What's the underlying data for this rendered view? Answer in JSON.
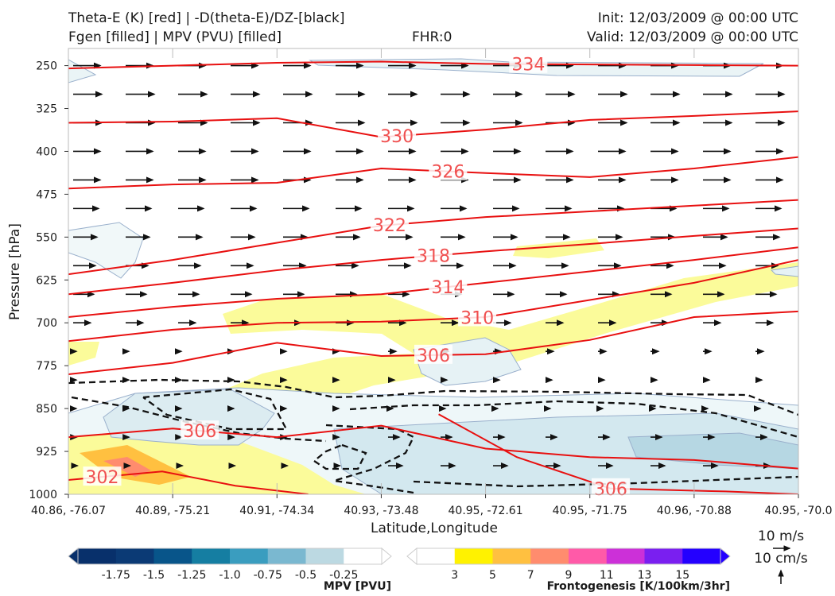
{
  "header": {
    "line1_left": "Theta-E (K) [red] | -D(theta-E)/DZ-[black]",
    "line2_left": "Fgen [filled] | MPV (PVU) [filled]",
    "fhr": "FHR:0",
    "init": "Init: 12/03/2009 @ 00:00 UTC",
    "valid": "Valid: 12/03/2009 @ 00:00 UTC"
  },
  "chart_data": {
    "type": "cross-section",
    "xlabel": "Latitude,Longitude",
    "ylabel": "Pressure [hPa]",
    "ylim": [
      1000,
      220
    ],
    "y_ticks": [
      250,
      325,
      400,
      475,
      550,
      625,
      700,
      775,
      850,
      925,
      1000
    ],
    "x_ticks": [
      "40.86, -76.07",
      "40.89, -75.21",
      "40.91, -74.34",
      "40.93, -73.48",
      "40.95, -72.61",
      "40.95, -71.75",
      "40.96, -70.88",
      "40.95, -70.0"
    ],
    "theta_e_series": [
      {
        "label": "334",
        "points": [
          [
            0,
            255
          ],
          [
            1,
            250
          ],
          [
            2,
            245
          ],
          [
            3,
            243
          ],
          [
            4,
            247
          ],
          [
            5,
            248
          ],
          [
            6,
            249
          ],
          [
            7,
            250
          ]
        ]
      },
      {
        "label": "330",
        "points": [
          [
            0,
            350
          ],
          [
            1,
            348
          ],
          [
            2,
            342
          ],
          [
            3,
            375
          ],
          [
            4,
            362
          ],
          [
            5,
            345
          ],
          [
            6,
            338
          ],
          [
            7,
            330
          ]
        ]
      },
      {
        "label": "326",
        "points": [
          [
            0,
            465
          ],
          [
            1,
            458
          ],
          [
            2,
            455
          ],
          [
            3,
            430
          ],
          [
            4,
            438
          ],
          [
            5,
            445
          ],
          [
            6,
            430
          ],
          [
            7,
            410
          ]
        ]
      },
      {
        "label": "322",
        "points": [
          [
            0,
            615
          ],
          [
            1,
            590
          ],
          [
            2,
            560
          ],
          [
            3,
            530
          ],
          [
            4,
            515
          ],
          [
            5,
            505
          ],
          [
            6,
            495
          ],
          [
            7,
            485
          ]
        ]
      },
      {
        "label": "318",
        "points": [
          [
            0,
            650
          ],
          [
            1,
            630
          ],
          [
            2,
            608
          ],
          [
            3,
            590
          ],
          [
            4,
            575
          ],
          [
            5,
            562
          ],
          [
            6,
            548
          ],
          [
            7,
            535
          ]
        ]
      },
      {
        "label": "314",
        "points": [
          [
            0,
            690
          ],
          [
            1,
            672
          ],
          [
            2,
            658
          ],
          [
            3,
            650
          ],
          [
            4,
            630
          ],
          [
            5,
            610
          ],
          [
            6,
            590
          ],
          [
            7,
            568
          ]
        ]
      },
      {
        "label": "310",
        "points": [
          [
            0,
            732
          ],
          [
            1,
            712
          ],
          [
            2,
            700
          ],
          [
            3,
            698
          ],
          [
            4,
            690
          ],
          [
            5,
            660
          ],
          [
            6,
            630
          ],
          [
            7,
            590
          ]
        ]
      },
      {
        "label": "306",
        "points": [
          [
            0,
            790
          ],
          [
            1,
            770
          ],
          [
            2,
            735
          ],
          [
            3,
            758
          ],
          [
            4,
            755
          ],
          [
            5,
            730
          ],
          [
            6,
            690
          ],
          [
            7,
            680
          ]
        ]
      },
      {
        "label": "306",
        "points": [
          [
            0,
            900
          ],
          [
            1,
            885
          ],
          [
            2,
            900
          ],
          [
            3,
            880
          ],
          [
            4,
            920
          ],
          [
            5,
            935
          ],
          [
            6,
            940
          ],
          [
            7,
            955
          ]
        ]
      },
      {
        "label": "306",
        "points": [
          [
            3.55,
            860
          ],
          [
            4.3,
            935
          ],
          [
            5.2,
            990
          ],
          [
            6.3,
            995
          ],
          [
            7,
            1000
          ]
        ]
      },
      {
        "label": "302",
        "points": [
          [
            0,
            975
          ],
          [
            0.9,
            960
          ],
          [
            1.6,
            985
          ],
          [
            2.3,
            1000
          ]
        ]
      }
    ],
    "mpv_colorbar": {
      "label": "MPV [PVU]",
      "ticks": [
        "-1.75",
        "-1.5",
        "-1.25",
        "-1.0",
        "-0.75",
        "-0.5",
        "-0.25"
      ],
      "colors": [
        "#08306b",
        "#0b3a75",
        "#08558a",
        "#157ea2",
        "#3a9dbf",
        "#7ab8d0",
        "#bcd9e2",
        "#ffffff"
      ]
    },
    "fgen_colorbar": {
      "label": "Frontogenesis [K/100km/3hr]",
      "ticks": [
        "3",
        "5",
        "7",
        "9",
        "11",
        "13",
        "15"
      ],
      "colors": [
        "#ffffff",
        "#fff200",
        "#ffc040",
        "#ff8c6e",
        "#ff5aa8",
        "#cc30d8",
        "#7a1ff0",
        "#2400ff"
      ]
    },
    "wind_key": {
      "horizontal": "10 m/s",
      "vertical": "10 cm/s"
    }
  }
}
